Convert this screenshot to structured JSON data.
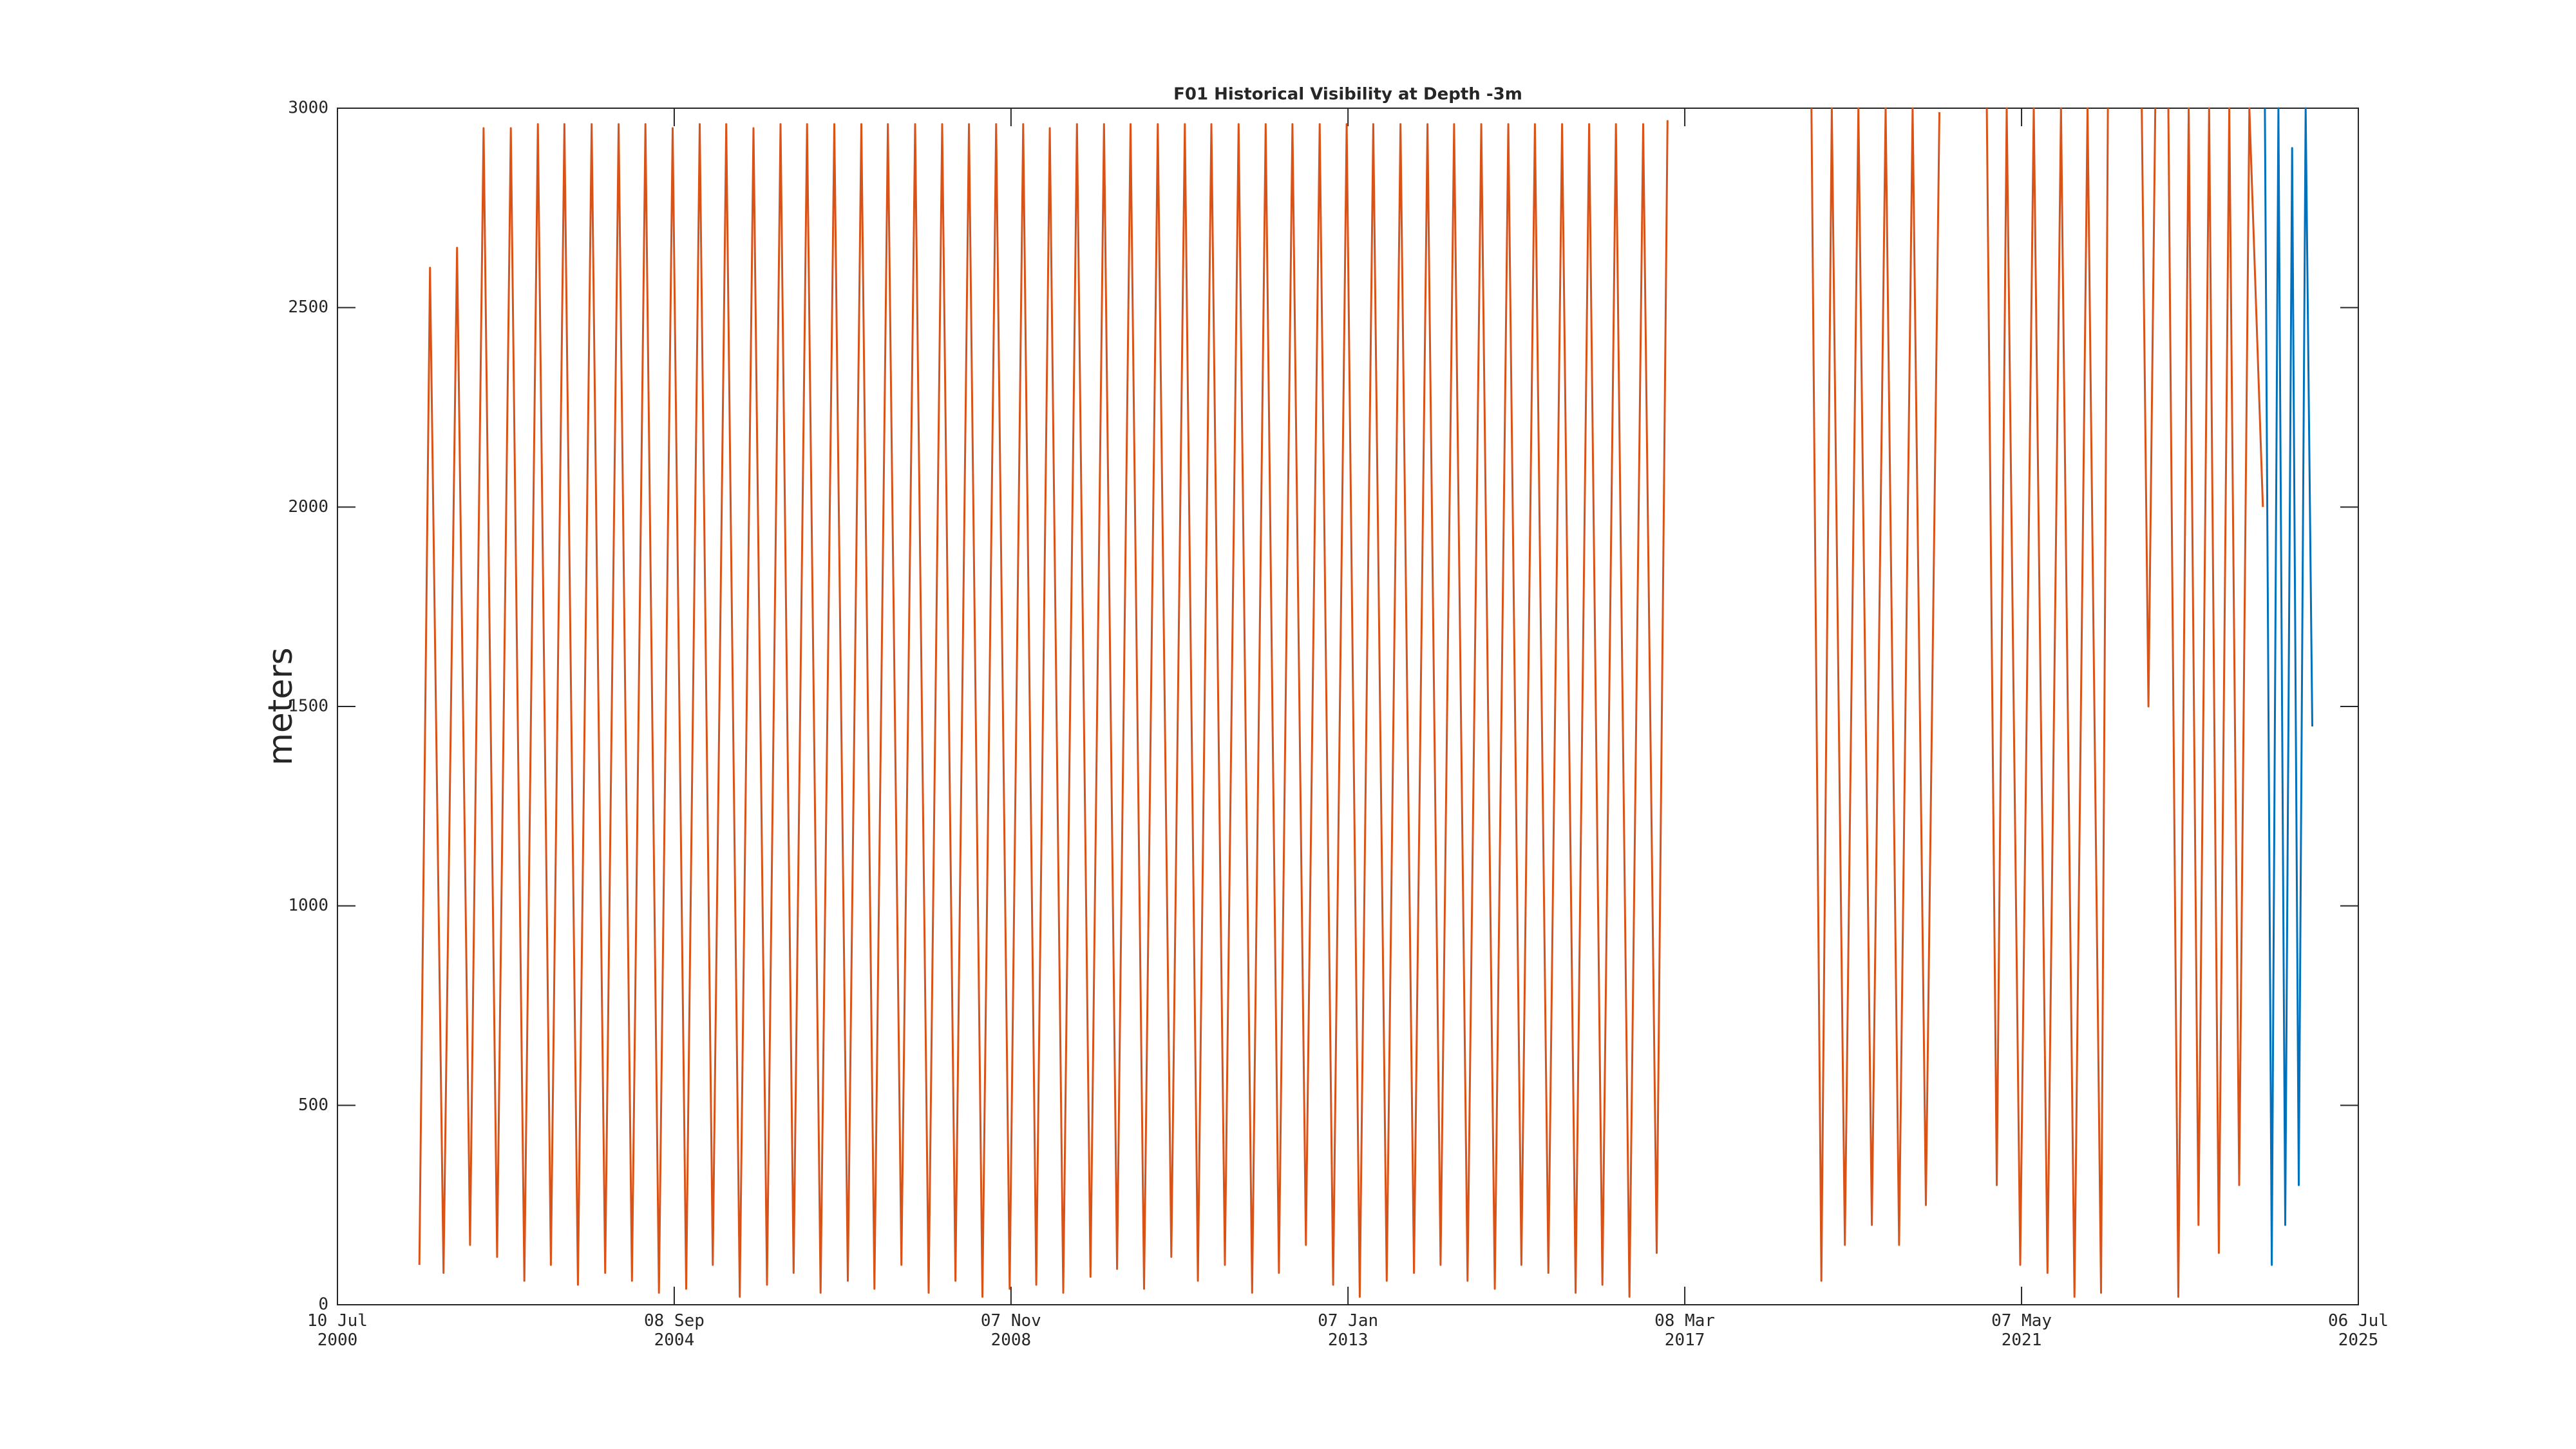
{
  "chart_data": {
    "type": "line",
    "title": "F01 Historical Visibility at Depth -3m",
    "ylabel": "meters",
    "ylim": [
      0,
      3000
    ],
    "yticks": [
      0,
      500,
      1000,
      1500,
      2000,
      2500,
      3000
    ],
    "xlim": [
      "2000-07-10",
      "2025-07-06"
    ],
    "xticks": [
      {
        "value": "2000-07-10",
        "label": "10 Jul\n2000"
      },
      {
        "value": "2004-09-08",
        "label": "08 Sep\n2004"
      },
      {
        "value": "2008-11-07",
        "label": "07 Nov\n2008"
      },
      {
        "value": "2013-01-07",
        "label": "07 Jan\n2013"
      },
      {
        "value": "2017-03-08",
        "label": "08 Mar\n2017"
      },
      {
        "value": "2021-05-07",
        "label": "07 May\n2021"
      },
      {
        "value": "2025-07-06",
        "label": "06 Jul\n2025"
      }
    ],
    "grid": false,
    "series": [
      {
        "color": "#d95319",
        "x": [
          "2001-07-15",
          "2001-09-01",
          "2001-11-01",
          "2002-01-01",
          "2002-03-01",
          "2002-05-01",
          "2002-07-01",
          "2002-09-01",
          "2002-11-01",
          "2003-01-01",
          "2003-03-01",
          "2003-05-01",
          "2003-07-01",
          "2003-09-01",
          "2003-11-01",
          "2004-01-01",
          "2004-03-01",
          "2004-05-01",
          "2004-07-01",
          "2004-09-01",
          "2004-11-01",
          "2005-01-01",
          "2005-03-01",
          "2005-05-01",
          "2005-07-01",
          "2005-09-01",
          "2005-11-01",
          "2006-01-01",
          "2006-03-01",
          "2006-05-01",
          "2006-07-01",
          "2006-09-01",
          "2006-11-01",
          "2007-01-01",
          "2007-03-01",
          "2007-05-01",
          "2007-07-01",
          "2007-09-01",
          "2007-11-01",
          "2008-01-01",
          "2008-03-01",
          "2008-05-01",
          "2008-07-01",
          "2008-09-01",
          "2008-11-01",
          "2009-01-01",
          "2009-03-01",
          "2009-05-01",
          "2009-07-01",
          "2009-09-01",
          "2009-11-01",
          "2010-01-01",
          "2010-03-01",
          "2010-05-01",
          "2010-07-01",
          "2010-09-01",
          "2010-11-01",
          "2011-01-01",
          "2011-03-01",
          "2011-05-01",
          "2011-07-01",
          "2011-09-01",
          "2011-11-01",
          "2012-01-01",
          "2012-03-01",
          "2012-05-01",
          "2012-07-01",
          "2012-09-01",
          "2012-11-01",
          "2013-01-01",
          "2013-03-01",
          "2013-05-01",
          "2013-07-01",
          "2013-09-01",
          "2013-11-01",
          "2014-01-01",
          "2014-03-01",
          "2014-05-01",
          "2014-07-01",
          "2014-09-01",
          "2014-11-01",
          "2015-01-01",
          "2015-03-01",
          "2015-05-01",
          "2015-07-01",
          "2015-09-01",
          "2015-11-01",
          "2016-01-01",
          "2016-03-01",
          "2016-05-01",
          "2016-07-01",
          "2016-09-01",
          "2016-11-01",
          "2016-12-20",
          "2017-09-01",
          "2018-10-01",
          "2018-11-15",
          "2019-01-01",
          "2019-03-01",
          "2019-05-01",
          "2019-07-01",
          "2019-09-01",
          "2019-11-01",
          "2020-01-01",
          "2020-03-01",
          "2020-05-01",
          "2020-08-01",
          "2020-12-01",
          "2021-01-15",
          "2021-03-01",
          "2021-05-01",
          "2021-07-01",
          "2021-09-01",
          "2021-11-01",
          "2022-01-01",
          "2022-03-01",
          "2022-05-01",
          "2022-06-01",
          "2022-08-01",
          "2022-11-01",
          "2022-12-01",
          "2023-01-01",
          "2023-02-01",
          "2023-03-01",
          "2023-04-15",
          "2023-06-01",
          "2023-07-15",
          "2023-09-01",
          "2023-10-15",
          "2023-12-01",
          "2024-01-15",
          "2024-03-01",
          "2024-05-01"
        ],
        "values": [
          100,
          2600,
          80,
          2650,
          150,
          2950,
          120,
          2950,
          60,
          2960,
          100,
          2960,
          50,
          2960,
          80,
          2960,
          60,
          2960,
          30,
          2950,
          40,
          2960,
          100,
          2960,
          20,
          2950,
          50,
          2960,
          80,
          2960,
          30,
          2960,
          60,
          2960,
          40,
          2960,
          100,
          2960,
          30,
          2960,
          60,
          2960,
          20,
          2960,
          40,
          2960,
          50,
          2950,
          30,
          2960,
          70,
          2960,
          90,
          2960,
          40,
          2960,
          120,
          2960,
          60,
          2960,
          100,
          2960,
          30,
          2960,
          80,
          2960,
          150,
          2960,
          50,
          2960,
          20,
          2960,
          60,
          2960,
          80,
          2960,
          100,
          2960,
          60,
          2960,
          40,
          2960,
          100,
          2960,
          80,
          2960,
          30,
          2960,
          50,
          2960,
          20,
          2960,
          130,
          2970,
          null,
          3000,
          60,
          3000,
          150,
          3000,
          200,
          3000,
          150,
          3000,
          250,
          2990,
          null,
          3000,
          300,
          3000,
          100,
          3000,
          80,
          3000,
          20,
          3000,
          30,
          3000,
          null,
          3000,
          1500,
          3000,
          null,
          3000,
          20,
          3000,
          200,
          3000,
          130,
          3000,
          300,
          3000,
          2000
        ]
      },
      {
        "color": "#0072bd",
        "x": [
          "2024-05-10",
          "2024-06-10",
          "2024-07-10",
          "2024-08-10",
          "2024-09-10",
          "2024-10-10",
          "2024-11-10",
          "2024-12-10"
        ],
        "values": [
          3000,
          100,
          3000,
          200,
          2900,
          300,
          3000,
          1450
        ]
      }
    ]
  }
}
